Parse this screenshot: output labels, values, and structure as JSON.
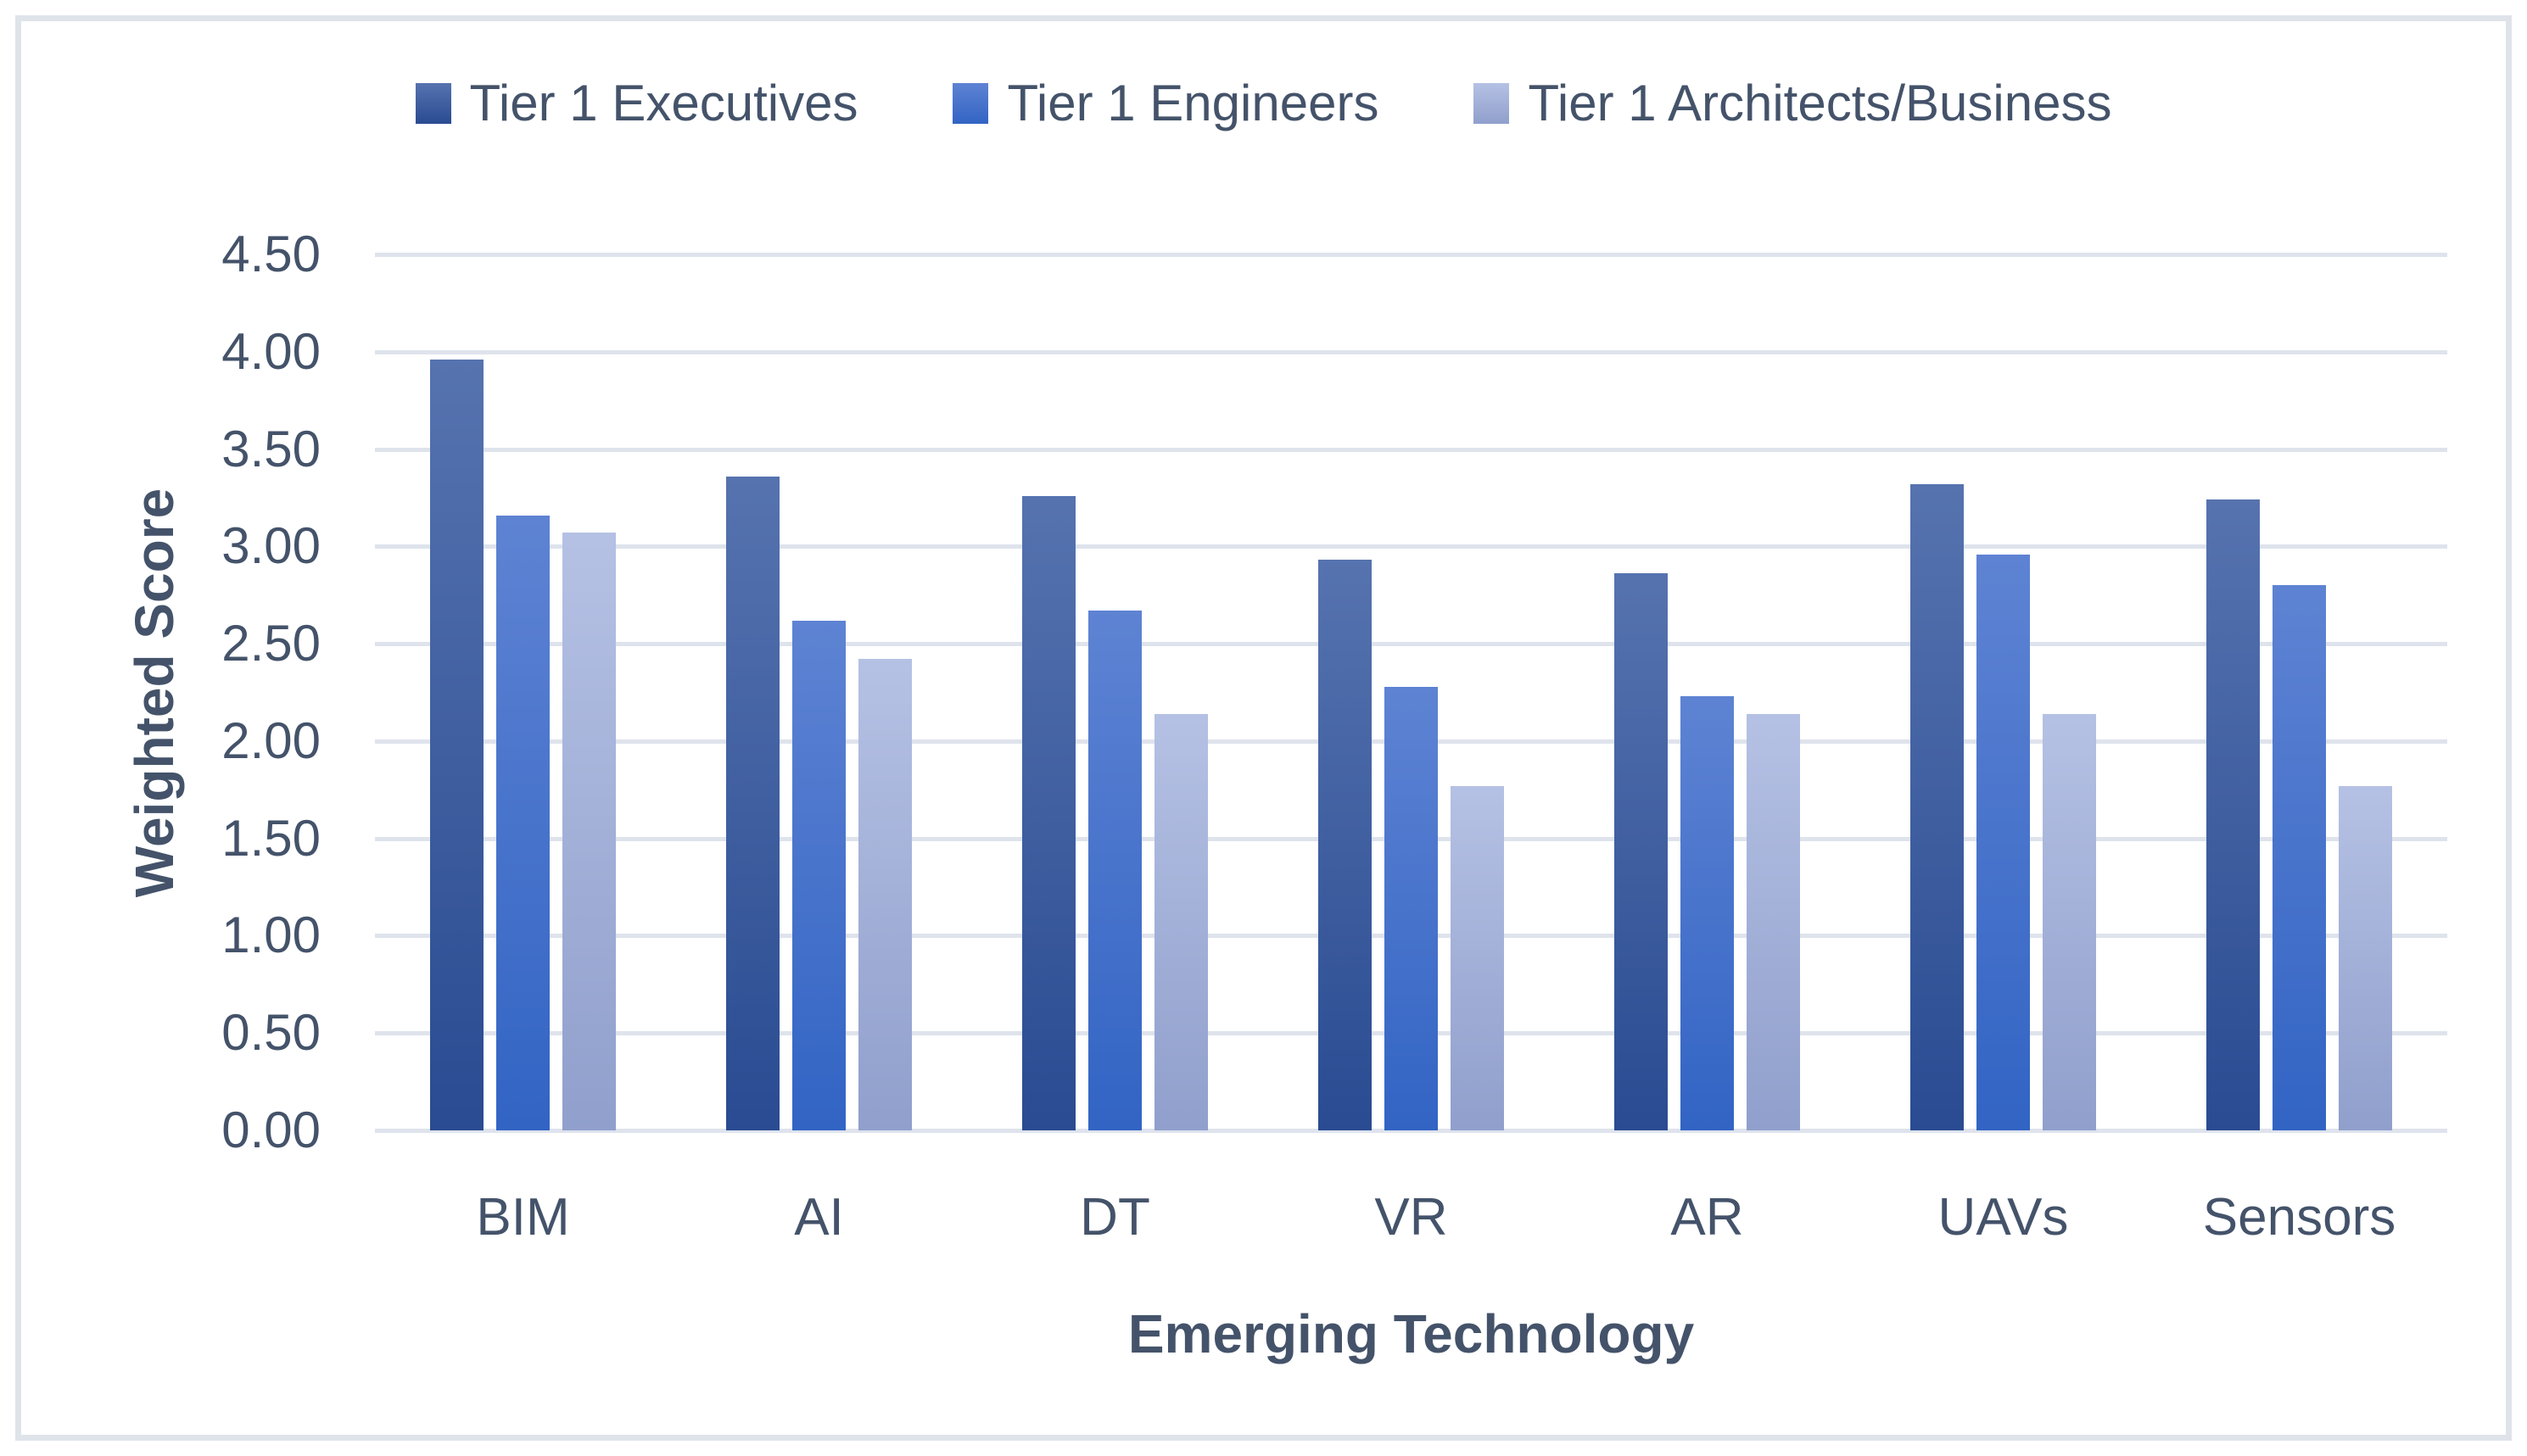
{
  "legend": {
    "items": [
      {
        "label": "Tier 1 Executives",
        "color_top": "#5673af",
        "color_bottom": "#2a4b92"
      },
      {
        "label": "Tier 1 Engineers",
        "color_top": "#5e83d3",
        "color_bottom": "#3264c4"
      },
      {
        "label": "Tier 1 Architects/Business",
        "color_top": "#b5c1e4",
        "color_bottom": "#909fcc"
      }
    ]
  },
  "y_axis": {
    "title": "Weighted Score",
    "tick_labels": [
      "4.50",
      "4.00",
      "3.50",
      "3.00",
      "2.50",
      "2.00",
      "1.50",
      "1.00",
      "0.50",
      "0.00"
    ]
  },
  "x_axis": {
    "title": "Emerging Technology",
    "categories": [
      "BIM",
      "AI",
      "DT",
      "VR",
      "AR",
      "UAVs",
      "Sensors"
    ]
  },
  "colors": {
    "text": "#44536a",
    "gridline": "#dee3ec",
    "frame_border": "#dfe3ea",
    "background": "#ffffff"
  },
  "chart_data": {
    "type": "bar",
    "title": "",
    "xlabel": "Emerging Technology",
    "ylabel": "Weighted Score",
    "categories": [
      "BIM",
      "AI",
      "DT",
      "VR",
      "AR",
      "UAVs",
      "Sensors"
    ],
    "series": [
      {
        "name": "Tier 1 Executives",
        "values": [
          3.96,
          3.36,
          3.26,
          2.93,
          2.86,
          3.32,
          3.24
        ]
      },
      {
        "name": "Tier 1 Engineers",
        "values": [
          3.16,
          2.62,
          2.67,
          2.28,
          2.23,
          2.96,
          2.8
        ]
      },
      {
        "name": "Tier 1 Architects/Business",
        "values": [
          3.07,
          2.42,
          2.14,
          1.77,
          2.14,
          2.14,
          1.77
        ]
      }
    ],
    "ylim": [
      0,
      4.5
    ],
    "ytick_step": 0.5,
    "grid": true,
    "legend_position": "top",
    "bar_gradient": true
  }
}
